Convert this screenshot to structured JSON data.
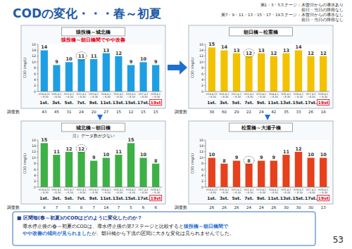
{
  "title": "CODの変化・・・春～初夏",
  "legend_notes": [
    "第1・3・5ステージ：木曽川からの導水あり",
    "前日・当日の降雨なし",
    "第7・9・11・13・15・17・19ステージ：木曽川からの導水なし",
    "前日・当日の降雨なし"
  ],
  "page_number": "53",
  "note": {
    "heading": "■ 区間毎(春～初夏)のCODはどのように変化したのか？",
    "lines": [
      [
        {
          "text": "導水停止後の春～初夏のCODは、導水停止後の第7ステージと比較すると",
          "highlight": false
        },
        {
          "text": "猿投橋～朝日橋間で",
          "highlight": true
        }
      ],
      [
        {
          "text": "やや改善の傾向が見られました",
          "highlight": true
        },
        {
          "text": "が、朝日橋から下流の区間に大きな変化は見られませんでした。",
          "highlight": false
        }
      ]
    ]
  },
  "chart_data": [
    {
      "type": "bar",
      "title": "猿投橋～城北橋",
      "subtitle": "猿投橋～朝日橋間でやや改善",
      "y_label": "COD (mg/L)",
      "categories": [
        "1st.",
        "3st.",
        "5st.",
        "7st.",
        "9st.",
        "11st.",
        "13st.",
        "15st.",
        "17st.",
        "19st"
      ],
      "periods": [
        "H19.4.22～8.30",
        "H20.4.1～8.30",
        "H21.4.1～8.30",
        "H22.4.1～8.30",
        "H23.4.1～8.30",
        "H24.4.1～8.30",
        "H25.4.1～8.30",
        "H26.4.1～8.30",
        "H27.4.1～8.30",
        "H28.4.1～8.30"
      ],
      "values": [
        14,
        9,
        10,
        11,
        11,
        13,
        12,
        9,
        10,
        9
      ],
      "counts_label": "調査数",
      "counts": [
        43,
        45,
        31,
        24,
        20,
        27,
        15,
        12,
        15,
        15
      ],
      "color": "#1e9fe3",
      "ylim": [
        0,
        16
      ],
      "yticks": [
        0,
        2,
        4,
        6,
        8,
        10,
        12,
        14,
        16
      ],
      "grid": false,
      "data_labels": true,
      "circled": "7st.",
      "boxed": "19st"
    },
    {
      "type": "bar",
      "title": "朝日橋～松重橋",
      "y_label": "COD (mg/L)",
      "categories": [
        "1st.",
        "3st.",
        "5st.",
        "7st.",
        "9st.",
        "11st.",
        "13st.",
        "15st.",
        "17st.",
        "19st"
      ],
      "periods": [
        "H19.4.22～8.30",
        "H20.4.1～8.30",
        "H21.4.1～8.30",
        "H22.4.1～8.30",
        "H23.4.1～8.30",
        "H24.4.1～8.30",
        "H25.4.1～8.30",
        "H26.4.1～8.30",
        "H27.4.1～8.30",
        "H28.4.1～8.30"
      ],
      "values": [
        15,
        14,
        13,
        12,
        13,
        12,
        13,
        14,
        12,
        12
      ],
      "counts_label": "調査数",
      "counts": [
        38,
        60,
        29,
        22,
        24,
        42,
        35,
        33,
        26,
        18
      ],
      "color": "#f2c200",
      "ylim": [
        0,
        16
      ],
      "yticks": [
        0,
        2,
        4,
        6,
        8,
        10,
        12,
        14,
        16
      ],
      "grid": false,
      "data_labels": true,
      "circled": "7st.",
      "boxed": "19st"
    },
    {
      "type": "bar",
      "title": "城北橋～朝日橋",
      "annotations": [
        "注）データ数が少ない"
      ],
      "y_label": "COD (mg/L)",
      "categories": [
        "1st.",
        "3st.",
        "5st.",
        "7st.",
        "9st.",
        "11st.",
        "13st.",
        "15st.",
        "17st.",
        "19st"
      ],
      "periods": [
        "H19.4.22～8.30",
        "H20.4.1～8.30",
        "H21.4.1～8.30",
        "H22.4.1～8.30",
        "H23.4.1～8.30",
        "H24.4.1～8.30",
        "H25.4.1～8.30",
        "H26.4.1～8.30",
        "H27.4.1～8.30",
        "H28.4.1～8.30"
      ],
      "values": [
        15,
        11,
        12,
        12,
        9,
        10,
        11,
        15,
        10,
        8
      ],
      "counts_label": "調査数",
      "counts": [
        9,
        7,
        5,
        8,
        7,
        14,
        7,
        5,
        6,
        6
      ],
      "color": "#3db046",
      "ylim": [
        0,
        16
      ],
      "yticks": [
        0,
        2,
        4,
        6,
        8,
        10,
        12,
        14,
        16
      ],
      "grid": false,
      "data_labels": true,
      "circled": "7st.",
      "boxed": "19st"
    },
    {
      "type": "bar",
      "title": "松重橋～大瀬子橋",
      "y_label": "COD (mg/L)",
      "categories": [
        "1st.",
        "3st.",
        "5st.",
        "7st.",
        "9st.",
        "11st.",
        "13st.",
        "15st.",
        "17st.",
        "19st"
      ],
      "periods": [
        "H19.4.22～8.30",
        "H20.4.1～8.30",
        "H21.4.1～8.30",
        "H22.4.1～8.30",
        "H23.4.1～8.30",
        "H24.4.1～8.30",
        "H25.4.1～8.30",
        "H26.4.1～8.30",
        "H27.4.1～8.30",
        "H28.4.1～8.30"
      ],
      "values": [
        10,
        8,
        9,
        8,
        9,
        9,
        11,
        12,
        10,
        10
      ],
      "counts_label": "調査数",
      "counts": [
        26,
        26,
        26,
        24,
        24,
        26,
        30,
        30,
        30,
        13
      ],
      "color": "#e6401c",
      "ylim": [
        0,
        16
      ],
      "yticks": [
        0,
        2,
        4,
        6,
        8,
        10,
        12,
        14,
        16
      ],
      "grid": false,
      "data_labels": true,
      "circled": "7st.",
      "boxed": "19st"
    }
  ]
}
